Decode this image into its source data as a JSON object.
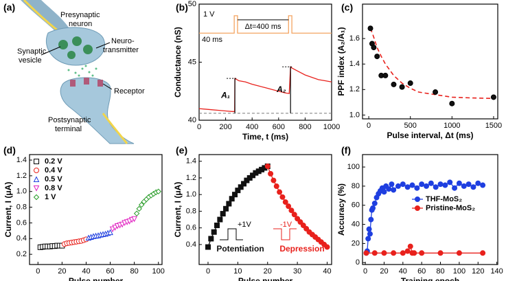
{
  "diagram": {
    "panel": "(a)",
    "labels": [
      "Presynaptic",
      "neuron",
      "Neuro-",
      "transmitter",
      "Synaptic",
      "vesicle",
      "Receptor",
      "Postsynaptic",
      "terminal"
    ]
  },
  "chart_data": [
    {
      "panel": "(b)",
      "type": "line",
      "xlabel": "Time, t (ms)",
      "ylabel": "Conductance (nS)",
      "xlim": [
        0,
        1000
      ],
      "xticks": [
        0,
        200,
        400,
        600,
        800,
        1000
      ],
      "ylim": [
        40,
        50
      ],
      "yticks": [
        40,
        45,
        50
      ],
      "hline": 40.6,
      "annotations": [
        "1 V",
        "40 ms",
        "Δt=400 ms",
        "A₁",
        "A₂"
      ],
      "series": [
        {
          "name": "Conductance",
          "color": "#e8211c",
          "line": "solid",
          "marker": "none",
          "x": [
            0,
            50,
            100,
            150,
            200,
            250,
            268,
            270,
            300,
            350,
            400,
            450,
            500,
            550,
            600,
            650,
            680,
            690,
            700,
            750,
            800,
            850,
            900,
            950,
            1000
          ],
          "values": [
            41,
            40.95,
            40.9,
            40.85,
            40.8,
            40.75,
            40.75,
            43.6,
            43.4,
            43.3,
            43.1,
            42.95,
            42.8,
            42.65,
            42.5,
            42.35,
            42.3,
            44.6,
            44.5,
            44.2,
            43.9,
            43.7,
            43.5,
            43.4,
            43.3
          ]
        },
        {
          "name": "Pulse",
          "color": "#f4a460",
          "line": "solid",
          "marker": "none",
          "x": [
            0,
            265,
            265,
            290,
            290,
            675,
            675,
            700,
            700,
            1000
          ],
          "values": [
            47.5,
            47.5,
            49,
            49,
            47.5,
            47.5,
            49,
            49,
            47.5,
            47.5
          ]
        }
      ]
    },
    {
      "panel": "(c)",
      "type": "scatter",
      "xlabel": "Pulse interval, Δt (ms)",
      "ylabel": "PPF index (A₂/A₁)",
      "xlim": [
        -75,
        1550
      ],
      "xticks": [
        0,
        500,
        1000,
        1500
      ],
      "ylim": [
        0.97,
        1.87
      ],
      "yticks": [
        {
          "value": 1,
          "label": "1.0"
        },
        1.2,
        1.4,
        1.6
      ],
      "series": [
        {
          "name": "Fit",
          "color": "#e8211c",
          "line": "dashed",
          "marker": "none",
          "x": [
            20,
            50,
            100,
            150,
            200,
            300,
            400,
            500,
            600,
            800,
            1000,
            1200,
            1500
          ],
          "values": [
            1.68,
            1.63,
            1.53,
            1.46,
            1.4,
            1.31,
            1.25,
            1.21,
            1.18,
            1.16,
            1.14,
            1.135,
            1.13
          ]
        },
        {
          "name": "PPF",
          "color": "#111111",
          "line": "none",
          "marker": "circle",
          "marker_fill": true,
          "x": [
            20,
            40,
            60,
            100,
            150,
            200,
            300,
            400,
            500,
            800,
            1000,
            1500
          ],
          "values": [
            1.68,
            1.56,
            1.53,
            1.46,
            1.31,
            1.31,
            1.24,
            1.22,
            1.25,
            1.18,
            1.09,
            1.14
          ]
        }
      ]
    },
    {
      "panel": "(d)",
      "type": "scatter",
      "xlabel": "Pulse number",
      "ylabel": "Current, I (μA)",
      "legend": "top-left",
      "xlim": [
        -7,
        103
      ],
      "xticks": [
        0,
        20,
        40,
        60,
        80,
        100
      ],
      "ylim": [
        0.07,
        1.47
      ],
      "yticks": [
        0.2,
        0.4,
        0.6,
        0.8,
        {
          "value": 1,
          "label": "1.0"
        },
        1.2,
        1.4
      ],
      "series": [
        {
          "name": "0.2 V",
          "color": "#000000",
          "line": "none",
          "marker": "square",
          "marker_fill": false,
          "x": [
            2,
            4,
            6,
            8,
            10,
            12,
            14,
            16,
            18,
            20
          ],
          "values": [
            0.29,
            0.295,
            0.3,
            0.3,
            0.3,
            0.305,
            0.305,
            0.31,
            0.31,
            0.31
          ]
        },
        {
          "name": "0.4 V",
          "color": "#e8211c",
          "line": "none",
          "marker": "circle",
          "marker_fill": false,
          "x": [
            22,
            24,
            26,
            28,
            30,
            32,
            34,
            36,
            38,
            40
          ],
          "values": [
            0.33,
            0.34,
            0.345,
            0.35,
            0.355,
            0.36,
            0.365,
            0.37,
            0.38,
            0.39
          ]
        },
        {
          "name": "0.5 V",
          "color": "#1f3fe0",
          "line": "none",
          "marker": "triangle",
          "marker_fill": false,
          "x": [
            42,
            44,
            46,
            48,
            50,
            52,
            54,
            56,
            58,
            60
          ],
          "values": [
            0.41,
            0.42,
            0.43,
            0.435,
            0.44,
            0.45,
            0.455,
            0.46,
            0.47,
            0.48
          ]
        },
        {
          "name": "0.8 V",
          "color": "#e020c0",
          "line": "none",
          "marker": "down-triangle",
          "marker_fill": false,
          "x": [
            62,
            64,
            66,
            68,
            70,
            72,
            74,
            76,
            78,
            80
          ],
          "values": [
            0.52,
            0.54,
            0.56,
            0.57,
            0.58,
            0.6,
            0.61,
            0.62,
            0.64,
            0.65
          ]
        },
        {
          "name": "1 V",
          "color": "#2a9d2a",
          "line": "none",
          "marker": "diamond",
          "marker_fill": false,
          "x": [
            82,
            84,
            86,
            88,
            90,
            92,
            94,
            96,
            98,
            100
          ],
          "values": [
            0.72,
            0.78,
            0.83,
            0.87,
            0.9,
            0.93,
            0.95,
            0.97,
            0.99,
            1.0
          ]
        }
      ]
    },
    {
      "panel": "(e)",
      "type": "line",
      "xlabel": "Pulse number",
      "ylabel": "Current, I (μA)",
      "legend": "inline",
      "xlim": [
        -3,
        41.5
      ],
      "xticks": [
        0,
        10,
        20,
        30,
        40
      ],
      "ylim": [
        0.16,
        1.48
      ],
      "yticks": [
        0.4,
        0.6,
        0.8,
        {
          "value": 1,
          "label": "1.0"
        },
        1.2,
        1.4
      ],
      "annotations": [
        "+1V",
        "-1V"
      ],
      "series": [
        {
          "name": "Potentiation",
          "color": "#111111",
          "line": "solid",
          "marker": "square",
          "marker_fill": true,
          "x": [
            0,
            1,
            2,
            3,
            4,
            5,
            6,
            7,
            8,
            9,
            10,
            11,
            12,
            13,
            14,
            15,
            16,
            17,
            18,
            19,
            20
          ],
          "values": [
            0.37,
            0.47,
            0.55,
            0.63,
            0.7,
            0.77,
            0.83,
            0.89,
            0.95,
            1.0,
            1.05,
            1.09,
            1.13,
            1.17,
            1.2,
            1.23,
            1.26,
            1.28,
            1.3,
            1.32,
            1.34
          ]
        },
        {
          "name": "Depression",
          "color": "#e8211c",
          "line": "solid",
          "marker": "circle",
          "marker_fill": true,
          "x": [
            20,
            21,
            22,
            23,
            24,
            25,
            26,
            27,
            28,
            29,
            30,
            31,
            32,
            33,
            34,
            35,
            36,
            37,
            38,
            39,
            40
          ],
          "values": [
            1.34,
            1.25,
            1.17,
            1.1,
            1.03,
            0.97,
            0.91,
            0.86,
            0.81,
            0.76,
            0.71,
            0.67,
            0.63,
            0.59,
            0.55,
            0.52,
            0.49,
            0.46,
            0.43,
            0.4,
            0.37
          ]
        }
      ]
    },
    {
      "panel": "(f)",
      "type": "line",
      "xlabel": "Training epoch",
      "ylabel": "Accuracy (%)",
      "legend": "right",
      "xlim": [
        -3,
        141
      ],
      "xticks": [
        0,
        20,
        40,
        60,
        80,
        100,
        120,
        140
      ],
      "ylim": [
        -2,
        113
      ],
      "yticks": [
        0,
        20,
        40,
        60,
        80,
        100
      ],
      "series": [
        {
          "name": "THF-MoS₂",
          "color": "#1f3fe0",
          "line": "solid",
          "marker": "circle",
          "marker_fill": true,
          "x": [
            1,
            2,
            3,
            4,
            5,
            6,
            7,
            8,
            10,
            12,
            14,
            16,
            18,
            20,
            22,
            25,
            28,
            30,
            35,
            40,
            45,
            50,
            55,
            60,
            65,
            70,
            75,
            80,
            85,
            90,
            95,
            100,
            105,
            110,
            115,
            120,
            125
          ],
          "values": [
            10,
            12,
            25,
            35,
            30,
            45,
            55,
            57,
            62,
            68,
            72,
            75,
            78,
            74,
            80,
            77,
            82,
            76,
            80,
            82,
            79,
            81,
            78,
            82,
            80,
            83,
            79,
            82,
            81,
            84,
            78,
            83,
            80,
            82,
            79,
            83,
            81
          ]
        },
        {
          "name": "Pristine-MoS₂",
          "color": "#e8211c",
          "line": "solid",
          "marker": "circle",
          "marker_fill": true,
          "x": [
            1,
            10,
            20,
            30,
            40,
            45,
            48,
            50,
            52,
            60,
            80,
            100,
            125
          ],
          "values": [
            10,
            10,
            10,
            10,
            10,
            12,
            17,
            10,
            10,
            10,
            10,
            10,
            10
          ]
        }
      ]
    }
  ]
}
